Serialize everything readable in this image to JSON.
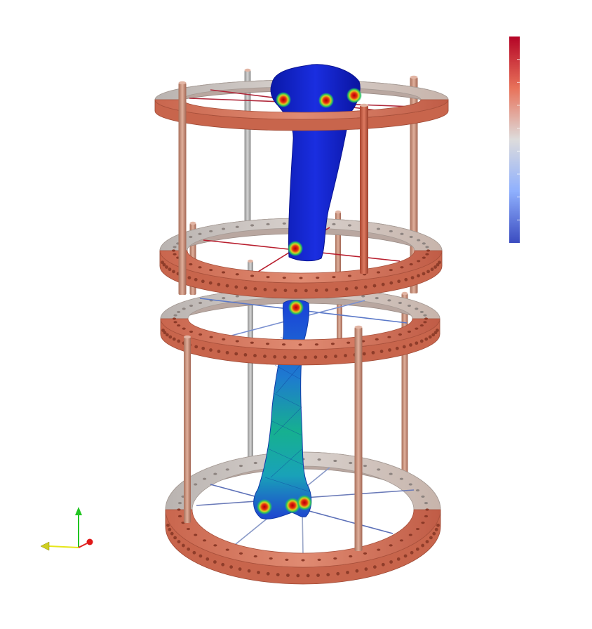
{
  "view": {
    "background": "#ffffff",
    "colormap": {
      "low": "#3b4cc0",
      "mid": "#dddddd",
      "high": "#b40426"
    },
    "icons": [
      "colorbar-icon",
      "orientation-axes-icon"
    ]
  },
  "scene": {
    "ring_color": "#d97a62",
    "ring_color_light": "#e7a38e",
    "rod_color": "#c99480",
    "bone_color": "#1020c8"
  }
}
